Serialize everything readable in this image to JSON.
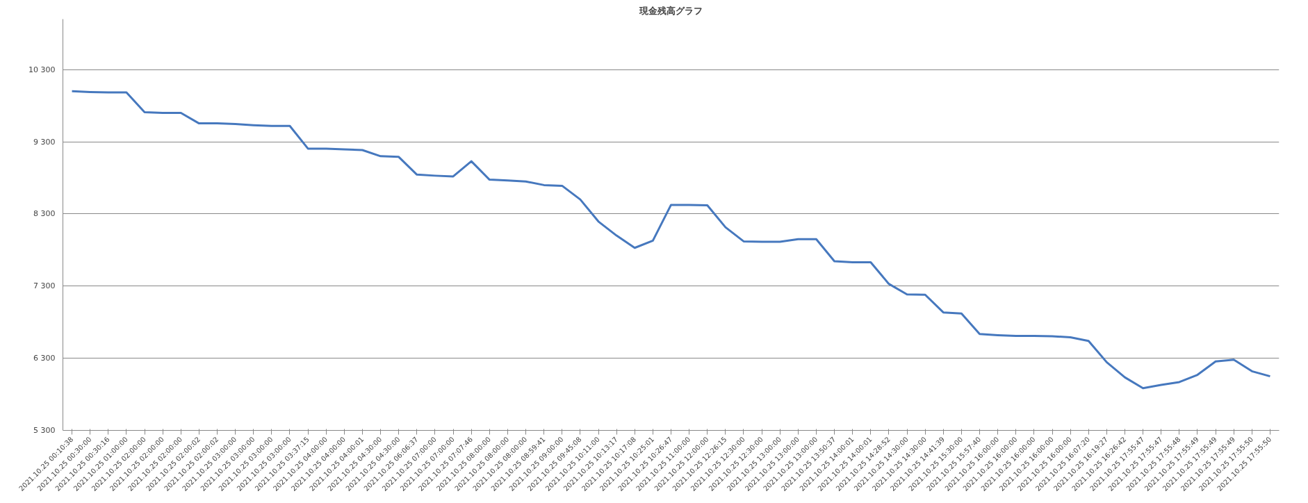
{
  "chart_data": {
    "type": "line",
    "title": "現金残高グラフ",
    "categories": [
      "2021.10.25 00:10:38",
      "2021.10.25 00:30:00",
      "2021.10.25 00:30:16",
      "2021.10.25 01:00:00",
      "2021.10.25 02:00:00",
      "2021.10.25 02:00:00",
      "2021.10.25 02:00:00",
      "2021.10.25 02:00:02",
      "2021.10.25 02:00:02",
      "2021.10.25 03:00:00",
      "2021.10.25 03:00:00",
      "2021.10.25 03:00:00",
      "2021.10.25 03:00:00",
      "2021.10.25 03:37:15",
      "2021.10.25 04:00:00",
      "2021.10.25 04:00:00",
      "2021.10.25 04:00:01",
      "2021.10.25 04:30:00",
      "2021.10.25 04:30:00",
      "2021.10.25 06:06:37",
      "2021.10.25 07:00:00",
      "2021.10.25 07:00:00",
      "2021.10.25 07:07:46",
      "2021.10.25 08:00:00",
      "2021.10.25 08:00:00",
      "2021.10.25 08:00:00",
      "2021.10.25 08:59:41",
      "2021.10.25 09:00:00",
      "2021.10.25 09:45:08",
      "2021.10.25 10:11:00",
      "2021.10.25 10:13:17",
      "2021.10.25 10:17:08",
      "2021.10.25 10:25:01",
      "2021.10.25 10:26:47",
      "2021.10.25 11:00:00",
      "2021.10.25 12:00:00",
      "2021.10.25 12:26:15",
      "2021.10.25 12:30:00",
      "2021.10.25 12:30:00",
      "2021.10.25 13:00:00",
      "2021.10.25 13:00:00",
      "2021.10.25 13:00:00",
      "2021.10.25 13:50:37",
      "2021.10.25 14:00:01",
      "2021.10.25 14:00:01",
      "2021.10.25 14:28:52",
      "2021.10.25 14:30:00",
      "2021.10.25 14:30:00",
      "2021.10.25 14:41:39",
      "2021.10.25 15:30:00",
      "2021.10.25 15:57:40",
      "2021.10.25 16:00:00",
      "2021.10.25 16:00:00",
      "2021.10.25 16:00:00",
      "2021.10.25 16:00:00",
      "2021.10.25 16:00:00",
      "2021.10.25 16:07:20",
      "2021.10.25 16:19:27",
      "2021.10.25 16:26:42",
      "2021.10.25 17:55:47",
      "2021.10.25 17:55:47",
      "2021.10.25 17:55:48",
      "2021.10.25 17:55:49",
      "2021.10.25 17:55:49",
      "2021.10.25 17:55:49",
      "2021.10.25 17:55:50",
      "2021.10.25 17:55:50"
    ],
    "series": [
      {
        "color": "#4678be",
        "values": [
          10000,
          9990,
          9985,
          9985,
          9710,
          9700,
          9700,
          9555,
          9555,
          9545,
          9530,
          9520,
          9520,
          9205,
          9205,
          9195,
          9185,
          9100,
          9090,
          8845,
          8830,
          8820,
          9030,
          8775,
          8765,
          8750,
          8700,
          8690,
          8500,
          8195,
          8000,
          7830,
          7930,
          8425,
          8425,
          8420,
          8115,
          7920,
          7915,
          7915,
          7950,
          7950,
          7645,
          7630,
          7630,
          7330,
          7185,
          7180,
          6935,
          6920,
          6635,
          6620,
          6610,
          6610,
          6605,
          6590,
          6540,
          6245,
          6035,
          5885,
          5930,
          5970,
          6070,
          6255,
          6280,
          6120,
          6050
        ]
      }
    ],
    "ylim": [
      5300,
      11000
    ],
    "yticks": [
      {
        "value": 5300,
        "label": "5 300"
      },
      {
        "value": 6300,
        "label": "6 300"
      },
      {
        "value": 7300,
        "label": "7 300"
      },
      {
        "value": 8300,
        "label": "8 300"
      },
      {
        "value": 9300,
        "label": "9 300"
      },
      {
        "value": 10300,
        "label": "10 300"
      }
    ],
    "grid": "y",
    "marker": "none",
    "line_style": "solid"
  }
}
